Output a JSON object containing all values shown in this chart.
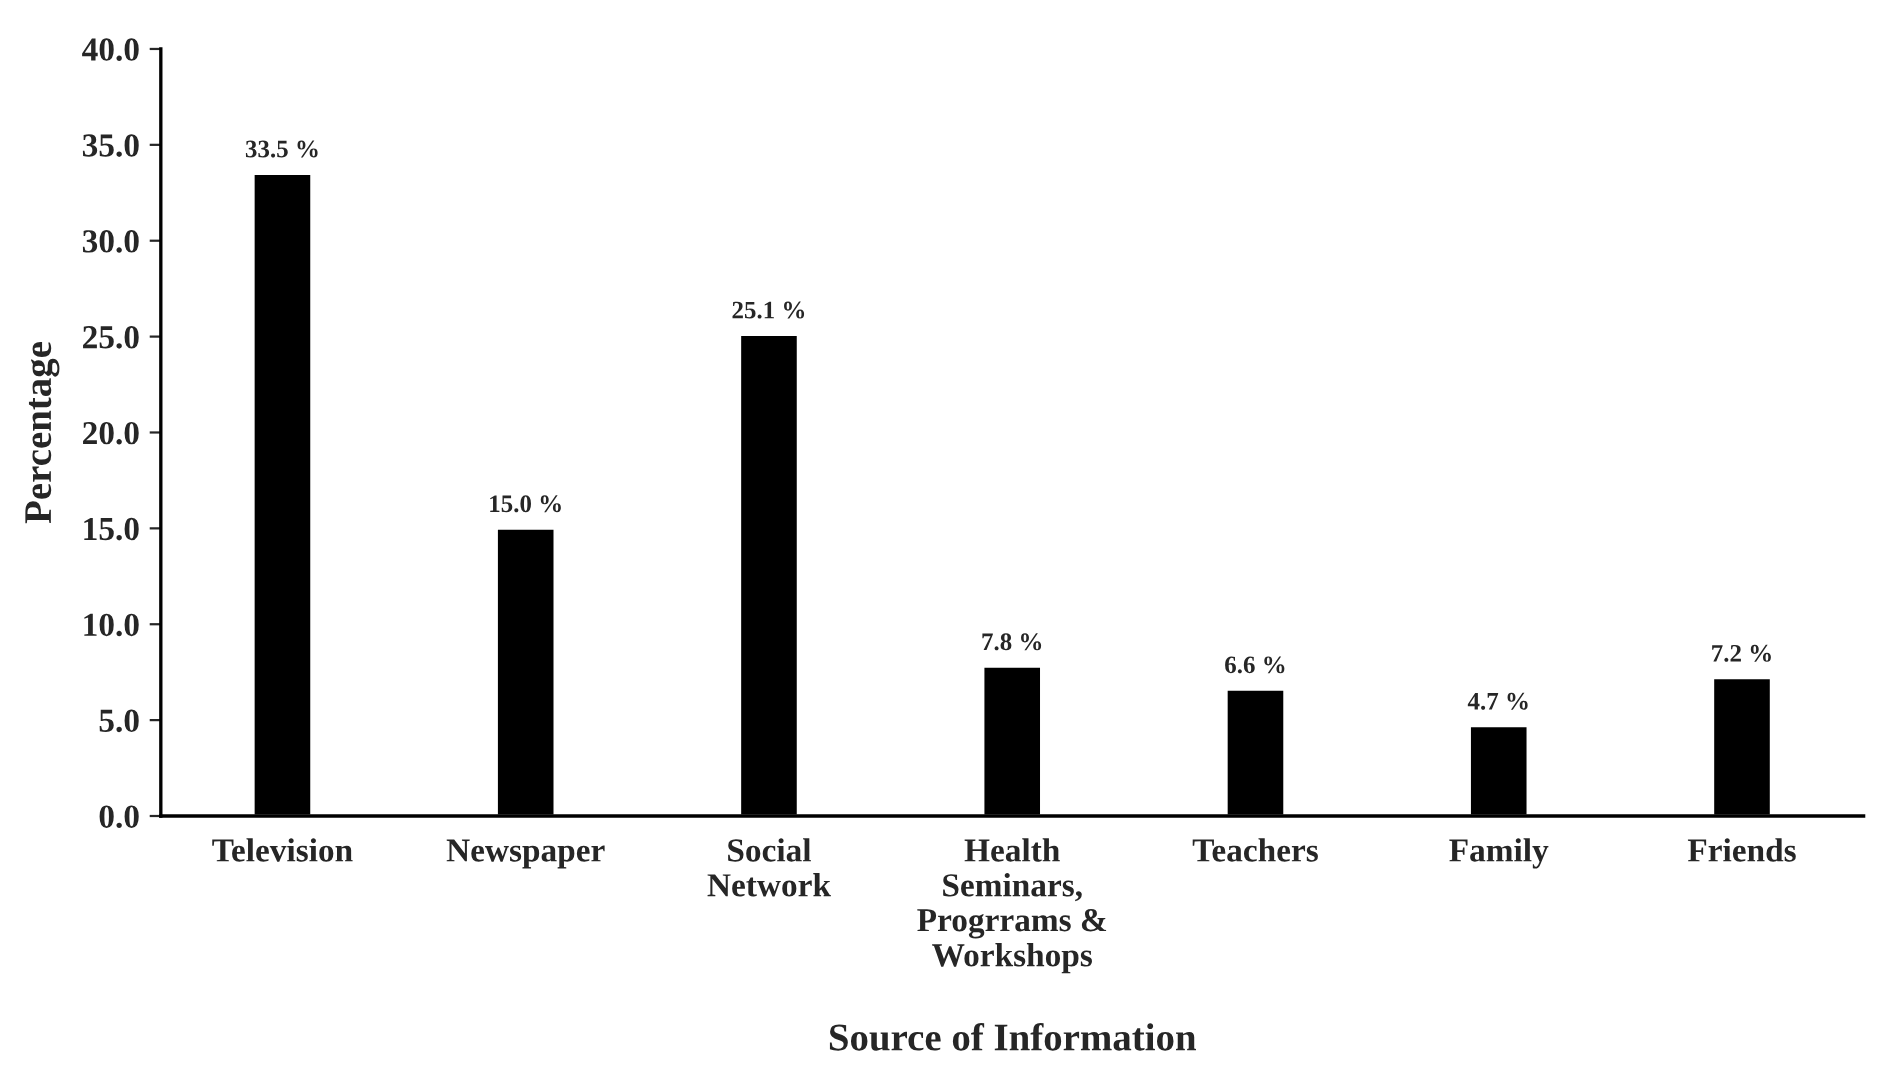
{
  "chart_data": {
    "type": "bar",
    "xlabel": "Source of Information",
    "ylabel": "Percentage",
    "categories": [
      "Television",
      "Newspaper",
      "Social\nNetwork",
      "Health\nSeminars,\nProgrrams &\nWorkshops",
      "Teachers",
      "Family",
      "Friends"
    ],
    "values": [
      33.5,
      15.0,
      25.1,
      7.8,
      6.6,
      4.7,
      7.2
    ],
    "value_labels": [
      "33.5 %",
      "15.0 %",
      "25.1 %",
      "7.8 %",
      "6.6 %",
      "4.7 %",
      "7.2 %"
    ],
    "color": "#000000",
    "ylim": [
      0,
      40
    ],
    "yticks": [
      {
        "value": 0,
        "label": "0.0"
      },
      {
        "value": 5,
        "label": "5.0"
      },
      {
        "value": 10,
        "label": "10.0"
      },
      {
        "value": 15,
        "label": "15.0"
      },
      {
        "value": 20,
        "label": "20.0"
      },
      {
        "value": 25,
        "label": "25.0"
      },
      {
        "value": 30,
        "label": "30.0"
      },
      {
        "value": 35,
        "label": "35.0"
      },
      {
        "value": 40,
        "label": "40.0"
      }
    ],
    "grid": false
  }
}
